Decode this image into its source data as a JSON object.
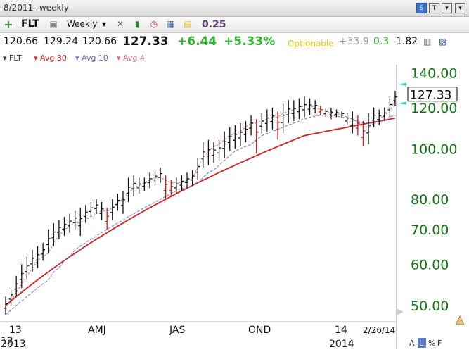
{
  "window": {
    "title": "8/2011--weekly"
  },
  "toolbar": {
    "symbol": "FLT",
    "period": "Weekly",
    "value": "0.25",
    "icons": [
      "plus-icon",
      "print-icon",
      "period-dropdown-icon",
      "tools-icon",
      "bar-chart-icon",
      "alarm-icon",
      "calculator-icon",
      "note-icon"
    ],
    "window_buttons": [
      "s-button",
      "t-button",
      "window-dropdown-icon"
    ]
  },
  "quote": {
    "open": "120.66",
    "high": "129.24",
    "low": "120.66",
    "last": "127.33",
    "change": "+6.44",
    "pct_change": "+5.33%",
    "optionable": "Optionable",
    "rel_strength": "+33.9",
    "beta": "0.3",
    "ratio": "1.82",
    "colors": {
      "up": "#2db82d",
      "optionable": "#e0c800",
      "muted": "#9a9a9a"
    }
  },
  "legend": {
    "items": [
      {
        "label": "FLT",
        "color": "#333333"
      },
      {
        "label": "Avg 30",
        "color": "#cc2222"
      },
      {
        "label": "Avg 10",
        "color": "#6666cc"
      },
      {
        "label": "Avg 4",
        "color": "#dd6666"
      }
    ]
  },
  "chart_data": {
    "type": "ohlc-bar",
    "scale": "log",
    "ylim": [
      48,
      145
    ],
    "yticks": [
      "140.00",
      "120.00",
      "100.00",
      "80.00",
      "70.00",
      "60.00",
      "50.00"
    ],
    "last_price_label": "127.33",
    "date_label": "2/26/14",
    "xticks": [
      "13",
      "AMJ",
      "JAS",
      "OND",
      "14"
    ],
    "xyears": [
      "2013",
      "2014"
    ],
    "x_corner": "12",
    "scale_buttons": [
      "A",
      "L",
      "%",
      "F"
    ],
    "series": [
      {
        "name": "FLT",
        "type": "ohlc",
        "bars": [
          [
            48,
            52
          ],
          [
            50,
            54
          ],
          [
            52,
            57
          ],
          [
            54,
            60
          ],
          [
            56,
            62
          ],
          [
            58,
            64
          ],
          [
            59,
            65
          ],
          [
            61,
            66
          ],
          [
            63,
            70
          ],
          [
            65,
            72
          ],
          [
            67,
            73
          ],
          [
            68,
            74
          ],
          [
            69,
            75
          ],
          [
            70,
            76
          ],
          [
            68,
            77
          ],
          [
            72,
            78
          ],
          [
            74,
            79
          ],
          [
            75,
            80
          ],
          [
            73,
            79
          ],
          [
            70,
            77
          ],
          [
            73,
            80
          ],
          [
            76,
            82
          ],
          [
            75,
            83
          ],
          [
            79,
            88
          ],
          [
            81,
            89
          ],
          [
            82,
            88
          ],
          [
            83,
            88
          ],
          [
            84,
            90
          ],
          [
            85,
            91
          ],
          [
            86,
            92
          ],
          [
            80,
            89
          ],
          [
            81,
            87
          ],
          [
            82,
            88
          ],
          [
            83,
            89
          ],
          [
            84,
            90
          ],
          [
            85,
            91
          ],
          [
            87,
            96
          ],
          [
            92,
            103
          ],
          [
            93,
            104
          ],
          [
            94,
            103
          ],
          [
            95,
            104
          ],
          [
            96,
            108
          ],
          [
            99,
            110
          ],
          [
            100,
            111
          ],
          [
            101,
            112
          ],
          [
            103,
            113
          ],
          [
            106,
            116
          ],
          [
            98,
            114
          ],
          [
            107,
            117
          ],
          [
            108,
            119
          ],
          [
            109,
            120
          ],
          [
            104,
            118
          ],
          [
            107,
            122
          ],
          [
            112,
            124
          ],
          [
            113,
            124
          ],
          [
            114,
            125
          ],
          [
            115,
            126
          ],
          [
            116,
            125
          ],
          [
            117,
            124
          ],
          [
            116,
            121
          ],
          [
            115,
            120
          ],
          [
            114,
            120
          ],
          [
            115,
            119
          ],
          [
            115,
            118
          ],
          [
            111,
            117
          ],
          [
            107,
            118
          ],
          [
            106,
            116
          ],
          [
            101,
            113
          ],
          [
            102,
            117
          ],
          [
            110,
            120
          ],
          [
            111,
            119
          ],
          [
            113,
            120
          ],
          [
            115,
            126
          ],
          [
            120.66,
            129.24
          ]
        ]
      },
      {
        "name": "Avg 30",
        "type": "line",
        "values": [
          50,
          51,
          52,
          53,
          54,
          55,
          56,
          57,
          58,
          59,
          60,
          61,
          62,
          63,
          64,
          65,
          66,
          67,
          68,
          69,
          70,
          71,
          72,
          73,
          74,
          75,
          76,
          77,
          78,
          79,
          80,
          81,
          82,
          83,
          84,
          85,
          86,
          87,
          88,
          89,
          90,
          91,
          92,
          93,
          94,
          95,
          96,
          97,
          98,
          99,
          100,
          101,
          102,
          103,
          104,
          105,
          106,
          106.5,
          107,
          107.5,
          108,
          108.5,
          109,
          109.5,
          110,
          110.5,
          111,
          111.5,
          112,
          112.5,
          113,
          113.5,
          114,
          114.5
        ]
      },
      {
        "name": "Avg 10",
        "type": "line",
        "values": [
          48,
          49,
          50,
          51,
          52,
          53,
          54,
          55,
          56,
          58,
          59,
          61,
          62,
          64,
          65,
          66,
          67,
          68,
          69,
          70,
          71,
          72,
          73,
          74,
          75,
          76,
          77,
          78,
          79,
          80,
          81,
          82,
          83,
          84,
          84,
          85,
          86,
          88,
          90,
          91,
          93,
          95,
          97,
          99,
          100,
          101,
          102,
          104,
          106,
          107,
          108,
          109,
          110,
          111,
          112,
          113,
          114,
          115,
          115.5,
          116,
          116,
          116,
          115.5,
          115,
          114.5,
          114,
          113,
          112,
          112,
          112,
          113,
          114,
          115,
          116
        ]
      },
      {
        "name": "Avg 4",
        "type": "line",
        "values": [
          49,
          51,
          53,
          55,
          57,
          59,
          61,
          62,
          63,
          66,
          68,
          70,
          71,
          72,
          72,
          73,
          74,
          75,
          76,
          76,
          77,
          79,
          80,
          82,
          84,
          85,
          86,
          87,
          88,
          88,
          87,
          86,
          86,
          86,
          87,
          88,
          92,
          96,
          99,
          101,
          102,
          104,
          106,
          107,
          108,
          110,
          112,
          112,
          113,
          114,
          115,
          115,
          117,
          118,
          119,
          120,
          121,
          121,
          120,
          119,
          118,
          117,
          117,
          116,
          115,
          114,
          112,
          110,
          110,
          112,
          114,
          116,
          118,
          124
        ]
      }
    ]
  }
}
